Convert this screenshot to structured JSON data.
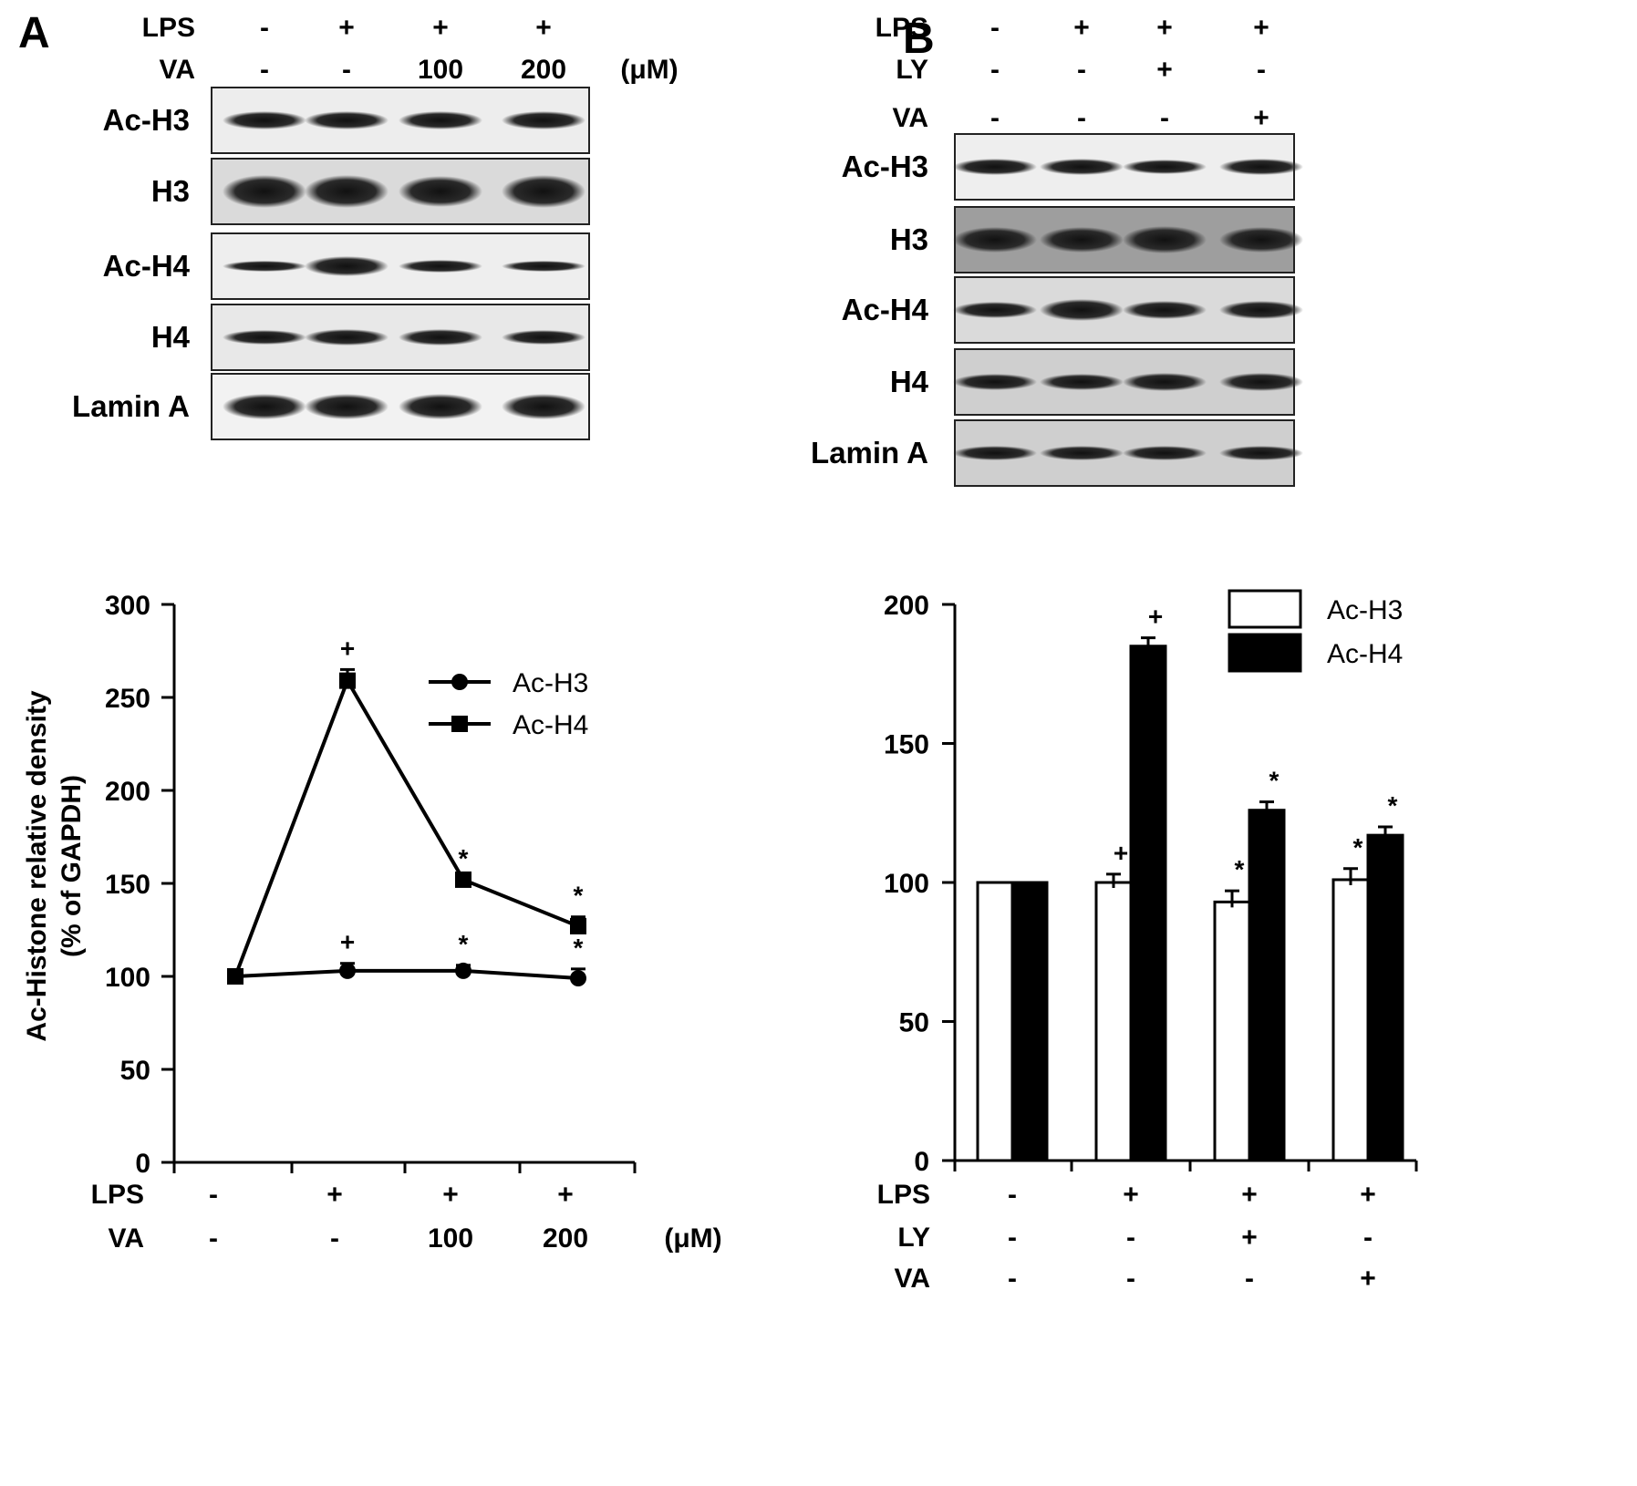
{
  "panel_a": {
    "letter": "A",
    "unit": "(μM)",
    "conditions": [
      {
        "label": "LPS",
        "values": [
          "-",
          "+",
          "+",
          "+"
        ]
      },
      {
        "label": "VA",
        "values": [
          "-",
          "-",
          "100",
          "200"
        ]
      }
    ],
    "blots": [
      "Ac-H3",
      "H3",
      "Ac-H4",
      "H4",
      "Lamin A"
    ]
  },
  "panel_b": {
    "letter": "B",
    "conditions": [
      {
        "label": "LPS",
        "values": [
          "-",
          "+",
          "+",
          "+"
        ]
      },
      {
        "label": "LY",
        "values": [
          "-",
          "-",
          "+",
          "-"
        ]
      },
      {
        "label": "VA",
        "values": [
          "-",
          "-",
          "-",
          "+"
        ]
      }
    ],
    "blots": [
      "Ac-H3",
      "H3",
      "Ac-H4",
      "H4",
      "Lamin A"
    ]
  },
  "chart_data": [
    {
      "type": "line",
      "ylabel_line1": "Ac-Histone relative density",
      "ylabel_line2": "(% of GAPDH)",
      "ylim": [
        0,
        300
      ],
      "yticks": [
        0,
        50,
        100,
        150,
        200,
        250,
        300
      ],
      "xconditions": [
        {
          "label": "LPS",
          "values": [
            "-",
            "+",
            "+",
            "+"
          ]
        },
        {
          "label": "VA",
          "values": [
            "-",
            "-",
            "100",
            "200"
          ]
        }
      ],
      "unit": "(μM)",
      "legend_position": "top-right",
      "series": [
        {
          "name": "Ac-H3",
          "marker": "circle",
          "values": [
            100,
            103,
            103,
            99
          ],
          "errors": [
            0,
            4,
            3,
            5
          ],
          "sig": [
            "",
            "+",
            "*",
            "*"
          ]
        },
        {
          "name": "Ac-H4",
          "marker": "square",
          "values": [
            100,
            259,
            152,
            127
          ],
          "errors": [
            0,
            6,
            0,
            5
          ],
          "sig": [
            "",
            "+",
            "*",
            "*"
          ]
        }
      ]
    },
    {
      "type": "bar",
      "ylim": [
        0,
        200
      ],
      "yticks": [
        0,
        50,
        100,
        150,
        200
      ],
      "xconditions": [
        {
          "label": "LPS",
          "values": [
            "-",
            "+",
            "+",
            "+"
          ]
        },
        {
          "label": "LY",
          "values": [
            "-",
            "-",
            "+",
            "-"
          ]
        },
        {
          "label": "VA",
          "values": [
            "-",
            "-",
            "-",
            "+"
          ]
        }
      ],
      "legend_position": "top-right",
      "series": [
        {
          "name": "Ac-H3",
          "fill": "#ffffff",
          "values": [
            100,
            100,
            93,
            101
          ],
          "errors": [
            0,
            3,
            4,
            4
          ],
          "sig": [
            "",
            "+",
            "*",
            "*"
          ]
        },
        {
          "name": "Ac-H4",
          "fill": "#000000",
          "values": [
            100,
            185,
            126,
            117
          ],
          "errors": [
            0,
            3,
            3,
            3
          ],
          "sig": [
            "",
            "+",
            "*",
            "*"
          ]
        }
      ]
    }
  ]
}
